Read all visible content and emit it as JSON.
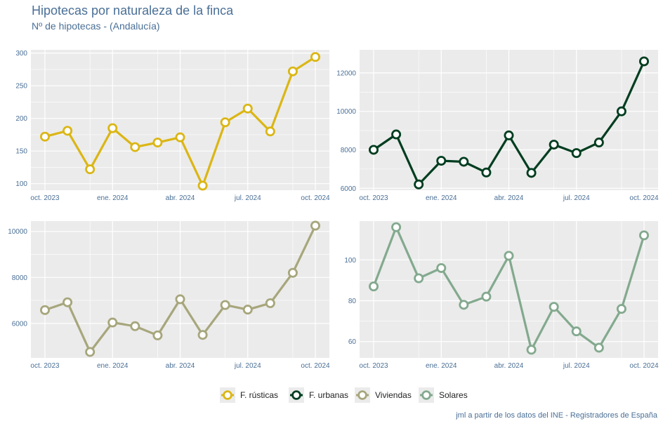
{
  "title": "Hipotecas por naturaleza de la finca",
  "subtitle": "Nº de hipotecas - (Andalucía)",
  "caption": "jml a partir de los datos del INE - Registradores de España",
  "chart_data": [
    {
      "type": "line",
      "series_name": "F. rústicas",
      "color": "#dbb614",
      "x_tick_labels": [
        "oct. 2023",
        "ene. 2024",
        "abr. 2024",
        "jul. 2024",
        "oct. 2024"
      ],
      "x": [
        "oct. 2023",
        "nov. 2023",
        "dic. 2023",
        "ene. 2024",
        "feb. 2024",
        "mar. 2024",
        "abr. 2024",
        "may. 2024",
        "jun. 2024",
        "jul. 2024",
        "ago. 2024",
        "sep. 2024",
        "oct. 2024"
      ],
      "values": [
        172,
        181,
        122,
        185,
        156,
        163,
        171,
        97,
        194,
        215,
        180,
        272,
        294
      ],
      "ylim": [
        90,
        305
      ],
      "y_ticks": [
        100,
        150,
        200,
        250,
        300
      ]
    },
    {
      "type": "line",
      "series_name": "F. urbanas",
      "color": "#003d1f",
      "x_tick_labels": [
        "oct. 2023",
        "ene. 2024",
        "abr. 2024",
        "jul. 2024",
        "oct. 2024"
      ],
      "x": [
        "oct. 2023",
        "nov. 2023",
        "dic. 2023",
        "ene. 2024",
        "feb. 2024",
        "mar. 2024",
        "abr. 2024",
        "may. 2024",
        "jun. 2024",
        "jul. 2024",
        "ago. 2024",
        "sep. 2024",
        "oct. 2024"
      ],
      "values": [
        8000,
        8800,
        6200,
        7430,
        7380,
        6820,
        8750,
        6800,
        8270,
        7830,
        8380,
        10000,
        12600
      ],
      "ylim": [
        5900,
        13200
      ],
      "y_ticks": [
        6000,
        8000,
        10000,
        12000
      ]
    },
    {
      "type": "line",
      "series_name": "Viviendas",
      "color": "#a7a67c",
      "x_tick_labels": [
        "oct. 2023",
        "ene. 2024",
        "abr. 2024",
        "jul. 2024",
        "oct. 2024"
      ],
      "x": [
        "oct. 2023",
        "nov. 2023",
        "dic. 2023",
        "ene. 2024",
        "feb. 2024",
        "mar. 2024",
        "abr. 2024",
        "may. 2024",
        "jun. 2024",
        "jul. 2024",
        "ago. 2024",
        "sep. 2024",
        "oct. 2024"
      ],
      "values": [
        6580,
        6920,
        4760,
        6040,
        5880,
        5480,
        7050,
        5500,
        6800,
        6600,
        6880,
        8200,
        10250
      ],
      "ylim": [
        4500,
        10450
      ],
      "y_ticks": [
        6000,
        8000,
        10000
      ]
    },
    {
      "type": "line",
      "series_name": "Solares",
      "color": "#83a98e",
      "x_tick_labels": [
        "oct. 2023",
        "ene. 2024",
        "abr. 2024",
        "jul. 2024",
        "oct. 2024"
      ],
      "x": [
        "oct. 2023",
        "nov. 2023",
        "dic. 2023",
        "ene. 2024",
        "feb. 2024",
        "mar. 2024",
        "abr. 2024",
        "may. 2024",
        "jun. 2024",
        "jul. 2024",
        "ago. 2024",
        "sep. 2024",
        "oct. 2024"
      ],
      "values": [
        87,
        116,
        91,
        96,
        78,
        82,
        102,
        56,
        77,
        65,
        57,
        76,
        112
      ],
      "ylim": [
        52,
        119
      ],
      "y_ticks": [
        60,
        80,
        100
      ]
    }
  ],
  "legend": [
    {
      "label": "F. rústicas",
      "color": "#dbb614"
    },
    {
      "label": "F. urbanas",
      "color": "#003d1f"
    },
    {
      "label": "Viviendas",
      "color": "#a7a67c"
    },
    {
      "label": "Solares",
      "color": "#83a98e"
    }
  ]
}
